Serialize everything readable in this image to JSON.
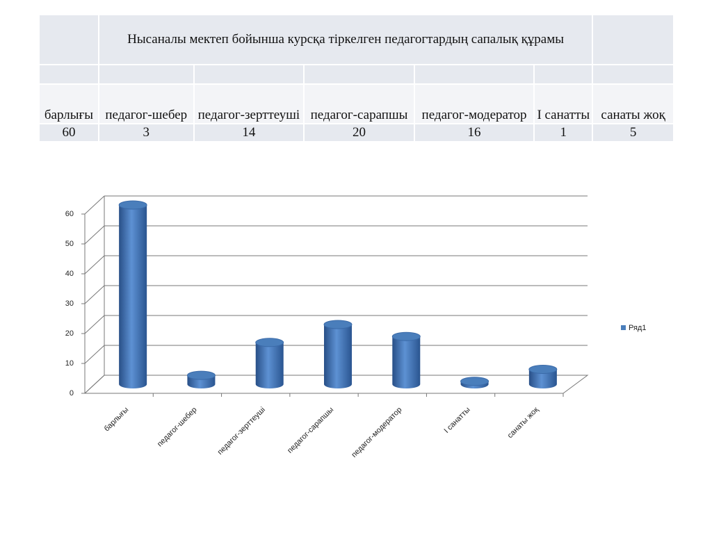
{
  "table": {
    "title": "Нысаналы мектеп бойынша курсқа тіркелген педагогтардың сапалық құрамы"
  },
  "chart_data": {
    "type": "bar",
    "categories": [
      "барлығы",
      "педагог-шебер",
      "педагог-зерттеуші",
      "педагог-сарапшы",
      "педагог-модератор",
      "I санатты",
      "санаты жоқ"
    ],
    "series": [
      {
        "name": "Ряд1",
        "color": "#4a7ebb",
        "values": [
          60,
          3,
          14,
          20,
          16,
          1,
          5
        ]
      }
    ],
    "ylim": [
      0,
      60
    ],
    "yticks": [
      0,
      10,
      20,
      30,
      40,
      50,
      60
    ],
    "grid": true,
    "legend": "right"
  }
}
